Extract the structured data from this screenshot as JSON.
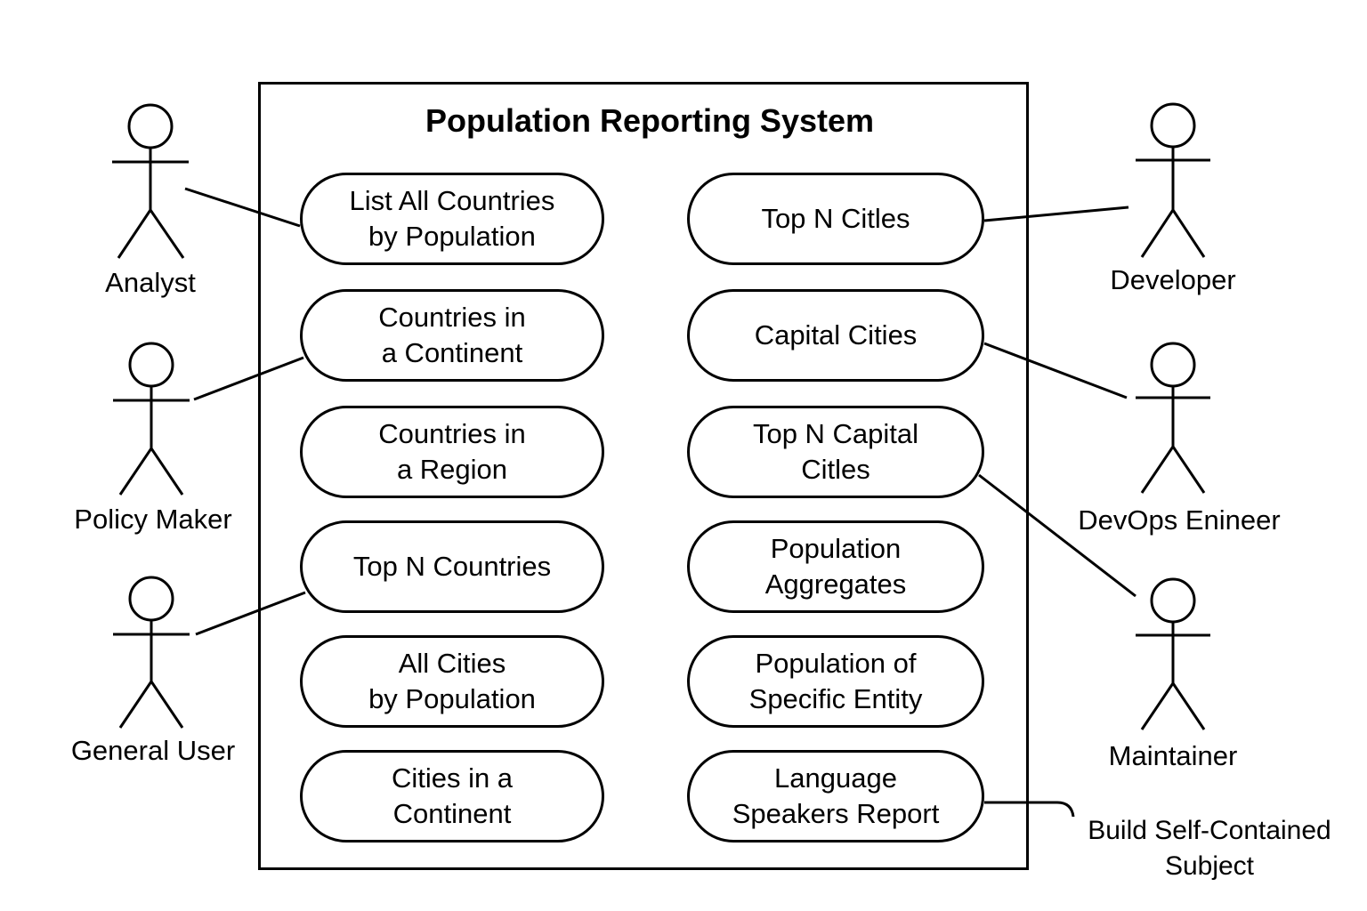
{
  "system": {
    "title": "Population Reporting System"
  },
  "use_cases_left": [
    {
      "id": "list-all-countries",
      "label": "List All Countries\nby Population"
    },
    {
      "id": "countries-continent",
      "label": "Countries in\na Continent"
    },
    {
      "id": "countries-region",
      "label": "Countries in\na Region"
    },
    {
      "id": "top-n-countries",
      "label": "Top N Countries"
    },
    {
      "id": "all-cities",
      "label": "All Cities\nby Population"
    },
    {
      "id": "cities-continent",
      "label": "Cities in a\nContinent"
    }
  ],
  "use_cases_right": [
    {
      "id": "top-n-cities",
      "label": "Top N Citles"
    },
    {
      "id": "capital-cities",
      "label": "Capital Cities"
    },
    {
      "id": "top-n-capital-cities",
      "label": "Top N Capital\nCitles"
    },
    {
      "id": "population-aggregates",
      "label": "Population\nAggregates"
    },
    {
      "id": "population-specific-entity",
      "label": "Population of\nSpecific Entity"
    },
    {
      "id": "language-speakers-report",
      "label": "Language\nSpeakers Report"
    }
  ],
  "actors": [
    {
      "id": "analyst",
      "label": "Analyst",
      "side": "left",
      "connects_to": "list-all-countries"
    },
    {
      "id": "policy-maker",
      "label": "Policy Maker",
      "side": "left",
      "connects_to": "countries-continent"
    },
    {
      "id": "general-user",
      "label": "General User",
      "side": "left",
      "connects_to": "top-n-countries"
    },
    {
      "id": "developer",
      "label": "Developer",
      "side": "right",
      "connects_to": "top-n-cities"
    },
    {
      "id": "devops-engineer",
      "label": "DevOps Enineer",
      "side": "right",
      "connects_to": "capital-cities"
    },
    {
      "id": "maintainer",
      "label": "Maintainer",
      "side": "right",
      "connects_to": "top-n-capital-cities"
    }
  ],
  "note": {
    "label": "Build Self-Contained\nSubject",
    "attached_to": "language-speakers-report"
  },
  "colors": {
    "stroke": "#000000",
    "background": "#ffffff"
  }
}
